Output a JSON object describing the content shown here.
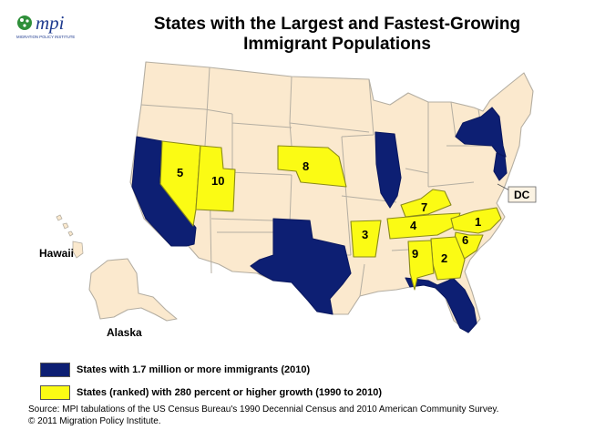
{
  "header": {
    "logo_text": "mpi",
    "logo_subtext": "MIGRATION POLICY INSTITUTE",
    "title_line1": "States with the Largest and Fastest-Growing",
    "title_line2": "Immigrant Populations"
  },
  "colors": {
    "large_states": "#0d1f73",
    "fast_growing": "#fbfb14",
    "other_states": "#fbe9ce",
    "border": "#b4aea2"
  },
  "map": {
    "large_states": [
      "California",
      "Texas",
      "Illinois",
      "New York",
      "New Jersey",
      "Florida"
    ],
    "growth_ranked": [
      {
        "rank": "1",
        "state": "North Carolina"
      },
      {
        "rank": "2",
        "state": "Georgia"
      },
      {
        "rank": "3",
        "state": "Arkansas"
      },
      {
        "rank": "4",
        "state": "Tennessee"
      },
      {
        "rank": "5",
        "state": "Nevada"
      },
      {
        "rank": "6",
        "state": "South Carolina"
      },
      {
        "rank": "7",
        "state": "Kentucky"
      },
      {
        "rank": "8",
        "state": "Nebraska"
      },
      {
        "rank": "9",
        "state": "Alabama"
      },
      {
        "rank": "10",
        "state": "Utah"
      }
    ],
    "labels": {
      "hawaii": "Hawaii",
      "alaska": "Alaska",
      "dc": "DC"
    }
  },
  "legend": {
    "item_large": "States with 1.7 million or more immigrants (2010)",
    "item_growth": "States (ranked) with 280 percent or higher growth (1990 to 2010)"
  },
  "source": {
    "line1": "Source: MPI tabulations of the US Census Bureau's 1990 Decennial Census and 2010 American Community Survey.",
    "line2": "© 2011 Migration Policy Institute."
  }
}
